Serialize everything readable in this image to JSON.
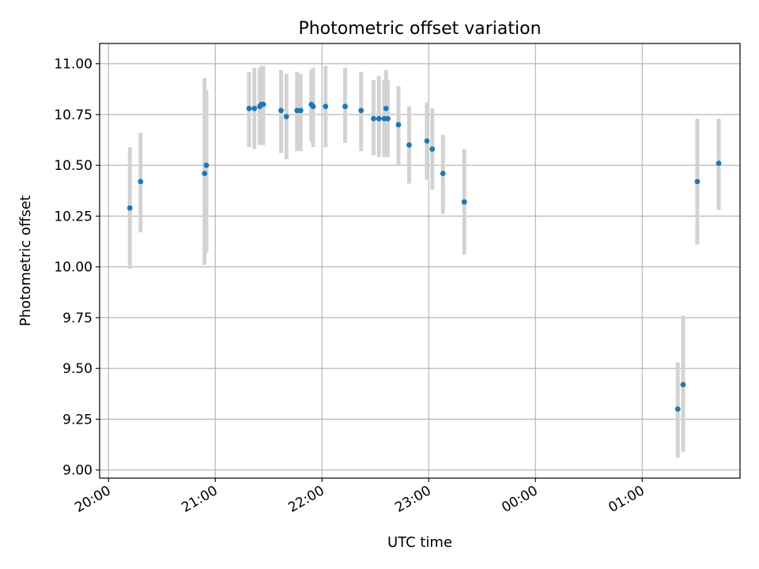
{
  "chart_data": {
    "type": "scatter",
    "title": "Photometric offset variation",
    "xlabel": "UTC time",
    "ylabel": "Photometric offset",
    "x_tick_labels": [
      "20:00",
      "21:00",
      "22:00",
      "23:00",
      "00:00",
      "01:00"
    ],
    "y_tick_labels": [
      "9.00",
      "9.25",
      "9.50",
      "9.75",
      "10.00",
      "10.25",
      "10.50",
      "10.75",
      "11.00"
    ],
    "x_ticks": [
      "20:00",
      "21:00",
      "22:00",
      "23:00",
      "24:00",
      "25:00"
    ],
    "y_ticks": [
      9.0,
      9.25,
      9.5,
      9.75,
      10.0,
      10.25,
      10.5,
      10.75,
      11.0
    ],
    "xlim": [
      "19:55",
      "25:55"
    ],
    "ylim": [
      8.96,
      11.1
    ],
    "grid": true,
    "colors": {
      "point": "#1f77b4",
      "errorbar": "#d3d3d3",
      "grid": "#b0b0b0"
    },
    "points": [
      {
        "t": "20:12",
        "y": 10.29,
        "lo": 9.99,
        "hi": 10.59
      },
      {
        "t": "20:18",
        "y": 10.42,
        "lo": 10.17,
        "hi": 10.66
      },
      {
        "t": "20:54",
        "y": 10.46,
        "lo": 10.01,
        "hi": 10.93
      },
      {
        "t": "20:55",
        "y": 10.5,
        "lo": 10.07,
        "hi": 10.87
      },
      {
        "t": "21:19",
        "y": 10.78,
        "lo": 10.59,
        "hi": 10.96
      },
      {
        "t": "21:22",
        "y": 10.78,
        "lo": 10.58,
        "hi": 10.98
      },
      {
        "t": "21:25",
        "y": 10.79,
        "lo": 10.6,
        "hi": 10.98
      },
      {
        "t": "21:26",
        "y": 10.8,
        "lo": 10.61,
        "hi": 10.99
      },
      {
        "t": "21:27",
        "y": 10.8,
        "lo": 10.6,
        "hi": 10.99
      },
      {
        "t": "21:37",
        "y": 10.77,
        "lo": 10.56,
        "hi": 10.97
      },
      {
        "t": "21:40",
        "y": 10.74,
        "lo": 10.53,
        "hi": 10.95
      },
      {
        "t": "21:46",
        "y": 10.77,
        "lo": 10.57,
        "hi": 10.96
      },
      {
        "t": "21:48",
        "y": 10.77,
        "lo": 10.57,
        "hi": 10.95
      },
      {
        "t": "21:54",
        "y": 10.8,
        "lo": 10.62,
        "hi": 10.97
      },
      {
        "t": "21:55",
        "y": 10.79,
        "lo": 10.59,
        "hi": 10.98
      },
      {
        "t": "22:02",
        "y": 10.79,
        "lo": 10.59,
        "hi": 10.99
      },
      {
        "t": "22:13",
        "y": 10.79,
        "lo": 10.61,
        "hi": 10.98
      },
      {
        "t": "22:22",
        "y": 10.77,
        "lo": 10.57,
        "hi": 10.96
      },
      {
        "t": "22:29",
        "y": 10.73,
        "lo": 10.55,
        "hi": 10.92
      },
      {
        "t": "22:32",
        "y": 10.73,
        "lo": 10.54,
        "hi": 10.94
      },
      {
        "t": "22:35",
        "y": 10.73,
        "lo": 10.54,
        "hi": 10.92
      },
      {
        "t": "22:36",
        "y": 10.78,
        "lo": 10.59,
        "hi": 10.97
      },
      {
        "t": "22:37",
        "y": 10.73,
        "lo": 10.54,
        "hi": 10.92
      },
      {
        "t": "22:43",
        "y": 10.7,
        "lo": 10.5,
        "hi": 10.89
      },
      {
        "t": "22:49",
        "y": 10.6,
        "lo": 10.41,
        "hi": 10.79
      },
      {
        "t": "22:59",
        "y": 10.62,
        "lo": 10.43,
        "hi": 10.81
      },
      {
        "t": "23:02",
        "y": 10.58,
        "lo": 10.38,
        "hi": 10.78
      },
      {
        "t": "23:08",
        "y": 10.46,
        "lo": 10.26,
        "hi": 10.65
      },
      {
        "t": "23:20",
        "y": 10.32,
        "lo": 10.06,
        "hi": 10.58
      },
      {
        "t": "25:20",
        "y": 9.3,
        "lo": 9.06,
        "hi": 9.53
      },
      {
        "t": "25:23",
        "y": 9.42,
        "lo": 9.09,
        "hi": 9.76
      },
      {
        "t": "25:31",
        "y": 10.42,
        "lo": 10.11,
        "hi": 10.73
      },
      {
        "t": "25:43",
        "y": 10.51,
        "lo": 10.28,
        "hi": 10.73
      }
    ]
  }
}
